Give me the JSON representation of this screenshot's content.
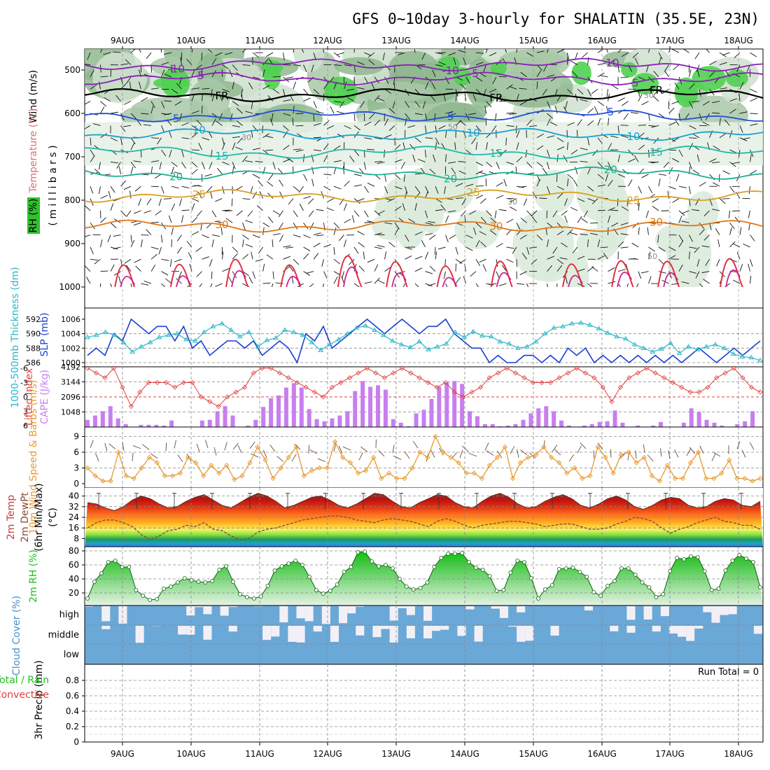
{
  "chart_data": {
    "type": "meteogram",
    "title": "GFS 0~10day 3-hourly for SHALATIN (35.5E, 23N)",
    "dates": [
      "9AUG",
      "10AUG",
      "11AUG",
      "12AUG",
      "13AUG",
      "14AUG",
      "15AUG",
      "16AUG",
      "17AUG",
      "18AUG"
    ],
    "panels": {
      "upper_air": {
        "ylabels": [
          "Wind (m/s)",
          "Temperature (°C)",
          "RH (%)",
          "( m i l l i b a r s )"
        ],
        "yticks": [
          "500",
          "600",
          "700",
          "800",
          "900",
          "1000"
        ],
        "temp_contours": [
          {
            "value": -10,
            "label": "-10",
            "pressure": 488,
            "color": "#8a1fb8"
          },
          {
            "value": -5,
            "label": "-5",
            "pressure": 520,
            "color": "#8a1fb8"
          },
          {
            "value": 0,
            "label": "FR",
            "pressure": 558,
            "color": "#000000"
          },
          {
            "value": 5,
            "label": "5",
            "pressure": 605,
            "color": "#1f4fd6"
          },
          {
            "value": 10,
            "label": "10",
            "pressure": 648,
            "color": "#1aa0d0"
          },
          {
            "value": 15,
            "label": "15",
            "pressure": 690,
            "color": "#20b8a8"
          },
          {
            "value": 20,
            "label": "20",
            "pressure": 738,
            "color": "#1ab090"
          },
          {
            "value": 25,
            "label": "25",
            "pressure": 790,
            "color": "#d8a020"
          },
          {
            "value": 30,
            "label": "30",
            "pressure": 860,
            "color": "#e07818"
          }
        ],
        "rh_labels": [
          "30",
          "50"
        ]
      },
      "slp_thickness": {
        "ylabel_left": "1000-500mb Thickness (dm)",
        "ylabel_right": "SLP (mb)",
        "thickness_ticks": [
          "586",
          "588",
          "590",
          "592"
        ],
        "slp_ticks": [
          "1000",
          "1002",
          "1004",
          "1006"
        ],
        "slp": [
          1001,
          1002,
          1001,
          1004,
          1003,
          1006,
          1005,
          1004,
          1005,
          1005,
          1003,
          1005,
          1002,
          1003,
          1001,
          1002,
          1003,
          1003,
          1002,
          1003,
          1001,
          1002,
          1003,
          1002,
          1000,
          1004,
          1003,
          1005,
          1002,
          1003,
          1004,
          1005,
          1006,
          1005,
          1004,
          1005,
          1006,
          1005,
          1004,
          1005,
          1005,
          1006,
          1004,
          1003,
          1002,
          1002,
          1000,
          1001,
          1000,
          1000,
          1001,
          1001,
          1000,
          1001,
          1000,
          1002,
          1001,
          1002,
          1000,
          1001,
          1000,
          1001,
          1000,
          1001,
          1000,
          1001,
          1000,
          1001,
          1000,
          1001,
          1002,
          1001,
          1000,
          1001,
          1002,
          1001,
          1002,
          1003
        ],
        "thickness": [
          589.5,
          589.8,
          590.2,
          589.8,
          588.8,
          587.5,
          588.2,
          588.8,
          589.5,
          589.8,
          590.0,
          589.2,
          589.0,
          590.2,
          591.0,
          591.4,
          590.5,
          589.6,
          590.2,
          588.2,
          589.1,
          589.4,
          590.5,
          590.2,
          589.8,
          588.8,
          587.7,
          588.5,
          589.2,
          590.0,
          590.8,
          591.1,
          590.5,
          589.8,
          589.0,
          588.5,
          588.1,
          588.9,
          587.8,
          588.2,
          588.6,
          590.2,
          589.5,
          590.3,
          589.7,
          589.6,
          588.9,
          588.6,
          588.0,
          588.2,
          588.9,
          590.0,
          590.8,
          591.0,
          591.4,
          591.5,
          591.2,
          590.7,
          590.1,
          589.6,
          589.3,
          588.5,
          588.0,
          587.5,
          587.9,
          588.7,
          587.3,
          588.2,
          587.8,
          588.2,
          588.5,
          588.0,
          587.2,
          586.8,
          586.7,
          586.3
        ]
      },
      "lifted_cape": {
        "ylabel_left": "Lifted Index",
        "ylabel_right": "CAPE (J/kg)",
        "li_ticks": [
          "6",
          "3",
          "0",
          "-3",
          "-6"
        ],
        "cape_ticks": [
          "1048",
          "2096",
          "3144",
          "4192"
        ],
        "lifted_index": [
          -6,
          -5,
          -4,
          -6,
          -2,
          2,
          -1,
          -3,
          -3,
          -3,
          -2,
          -3,
          -3,
          0,
          1,
          2,
          0,
          -1,
          -2,
          -5,
          -6,
          -6,
          -5,
          -4,
          -3,
          -2,
          -1,
          0,
          -2,
          -3,
          -4,
          -5,
          -6,
          -5,
          -4,
          -5,
          -6,
          -5,
          -4,
          -3,
          -2,
          -3,
          -1,
          0,
          -1,
          -2,
          -4,
          -5,
          -6,
          -5,
          -4,
          -3,
          -3,
          -3,
          -4,
          -5,
          -6,
          -5,
          -4,
          -2,
          1,
          -2,
          -4,
          -5,
          -6,
          -5,
          -4,
          -3,
          -2,
          -1,
          -1,
          -2,
          -4,
          -5,
          -6,
          -4,
          -2,
          -1
        ],
        "cape": [
          500,
          800,
          1100,
          1450,
          600,
          200,
          0,
          150,
          150,
          150,
          100,
          450,
          0,
          0,
          0,
          450,
          500,
          1100,
          1450,
          800,
          0,
          100,
          500,
          1400,
          2000,
          2200,
          2750,
          3050,
          2750,
          1250,
          550,
          400,
          600,
          800,
          1100,
          2500,
          3200,
          2800,
          2900,
          2600,
          550,
          300,
          50,
          950,
          1200,
          1950,
          2800,
          3100,
          3200,
          3000,
          1100,
          750,
          200,
          200,
          50,
          100,
          200,
          500,
          950,
          1300,
          1450,
          1100,
          450,
          100,
          0,
          100,
          200,
          350,
          400,
          1150,
          300,
          0,
          100,
          0,
          100,
          350,
          0,
          0,
          300,
          1300,
          1050,
          500,
          300,
          100,
          0,
          200,
          400,
          1100,
          0
        ]
      },
      "wind10m": {
        "ylabel": "10m Wind Speed & Barbs (m/s)",
        "yticks": [
          "0",
          "3",
          "6",
          "9"
        ],
        "speed": [
          3,
          1.5,
          0.5,
          0.5,
          6,
          1.5,
          1,
          3,
          5,
          4,
          1.5,
          1.5,
          2,
          5,
          4,
          1.5,
          3.5,
          2,
          3.5,
          0.8,
          1.5,
          4,
          7,
          4.5,
          1,
          3,
          5,
          7,
          1.5,
          2.5,
          3,
          3,
          8,
          5,
          4,
          2,
          2.5,
          5,
          1,
          2,
          1,
          1,
          3,
          6,
          5,
          9,
          6,
          5,
          4,
          2,
          2,
          1,
          3.5,
          5,
          7,
          1,
          4,
          5,
          5.5,
          7,
          5,
          4,
          2,
          3,
          1,
          1.5,
          7,
          5,
          2,
          5.5,
          6,
          4,
          5,
          1.5,
          0.5,
          3.5,
          1,
          1,
          4,
          6,
          1,
          1,
          2,
          4.5,
          1,
          1,
          0.5,
          1
        ]
      },
      "temp2m": {
        "ylabels": [
          "2m Temp",
          "2m DewPt",
          "(6hr Min/Max)",
          "(°C)"
        ],
        "yticks": [
          "8",
          "16",
          "24",
          "32",
          "40"
        ],
        "temp": [
          35,
          34,
          31,
          29,
          32,
          37,
          40,
          38,
          34,
          31,
          32,
          36,
          39,
          41,
          37,
          33,
          31,
          35,
          39,
          42,
          40,
          36,
          31,
          33,
          36,
          39,
          40,
          37,
          33,
          31,
          34,
          38,
          42,
          41,
          36,
          32,
          31,
          35,
          38,
          41,
          40,
          35,
          32,
          31,
          36,
          40,
          42,
          39,
          34,
          31,
          32,
          36,
          39,
          41,
          38,
          33,
          31,
          34,
          38,
          40,
          37,
          32,
          30,
          33,
          37,
          39,
          38,
          33,
          31,
          32,
          36,
          38,
          37,
          33,
          32,
          36
        ],
        "dewpt": [
          16,
          20,
          22,
          22,
          20,
          17,
          11,
          7,
          10,
          14,
          15,
          18,
          17,
          20,
          15,
          14,
          10,
          7,
          8,
          13,
          15,
          16,
          18,
          20,
          22,
          23,
          24,
          25,
          25,
          24,
          22,
          21,
          20,
          22,
          23,
          22,
          21,
          19,
          17,
          21,
          23,
          21,
          18,
          16,
          18,
          19,
          20,
          21,
          21,
          20,
          19,
          17,
          18,
          19,
          19,
          17,
          15,
          15,
          16,
          19,
          21,
          24,
          23,
          21,
          16,
          12,
          15,
          17,
          20,
          22,
          24,
          21,
          20,
          18,
          18,
          15
        ],
        "max6": [
          40,
          36,
          null,
          null,
          36,
          41,
          null,
          null,
          null,
          null,
          38,
          43,
          null,
          null,
          null,
          null,
          null,
          null,
          null,
          null,
          37,
          41,
          null,
          null,
          null,
          null,
          null,
          null,
          null,
          null,
          null,
          null
        ]
      },
      "rh2m": {
        "ylabel": "2m RH (%)",
        "yticks": [
          "20",
          "40",
          "60",
          "80"
        ],
        "rh": [
          12,
          36,
          48,
          64,
          66,
          57,
          57,
          24,
          16,
          10,
          11,
          26,
          29,
          35,
          41,
          38,
          36,
          35,
          37,
          53,
          58,
          36,
          18,
          14,
          12,
          15,
          30,
          52,
          58,
          62,
          66,
          60,
          43,
          24,
          19,
          23,
          32,
          50,
          57,
          78,
          79,
          65,
          58,
          60,
          55,
          40,
          29,
          25,
          27,
          35,
          57,
          70,
          76,
          76,
          77,
          64,
          56,
          53,
          44,
          23,
          24,
          49,
          66,
          64,
          41,
          12,
          25,
          31,
          54,
          55,
          56,
          50,
          43,
          21,
          16,
          30,
          37,
          55,
          55,
          46,
          35,
          28,
          14,
          18,
          51,
          70,
          68,
          72,
          71,
          51,
          24,
          26,
          52,
          66,
          74,
          69,
          64,
          28
        ]
      },
      "cloud": {
        "ylabel": "Cloud Cover (%)",
        "levels": [
          "high",
          "middle",
          "low"
        ]
      },
      "precip": {
        "ylabels": [
          "3hr Precip (mm)",
          "Total / Rain",
          "Convective"
        ],
        "yticks": [
          "0",
          "0.2",
          "0.4",
          "0.6",
          "0.8"
        ],
        "run_total_label": "Run Total = 0",
        "values": []
      }
    },
    "colors": {
      "slp": "#1a3fd0",
      "thickness": "#2ab8c8",
      "lifted_index": "#e04040",
      "cape": "#c77ff0",
      "wind_speed": "#e89a30",
      "dewpt": "#8b4a3a",
      "rh2m": "#20d020",
      "cloud": "#6aa8d8",
      "grid": "#999999"
    }
  }
}
